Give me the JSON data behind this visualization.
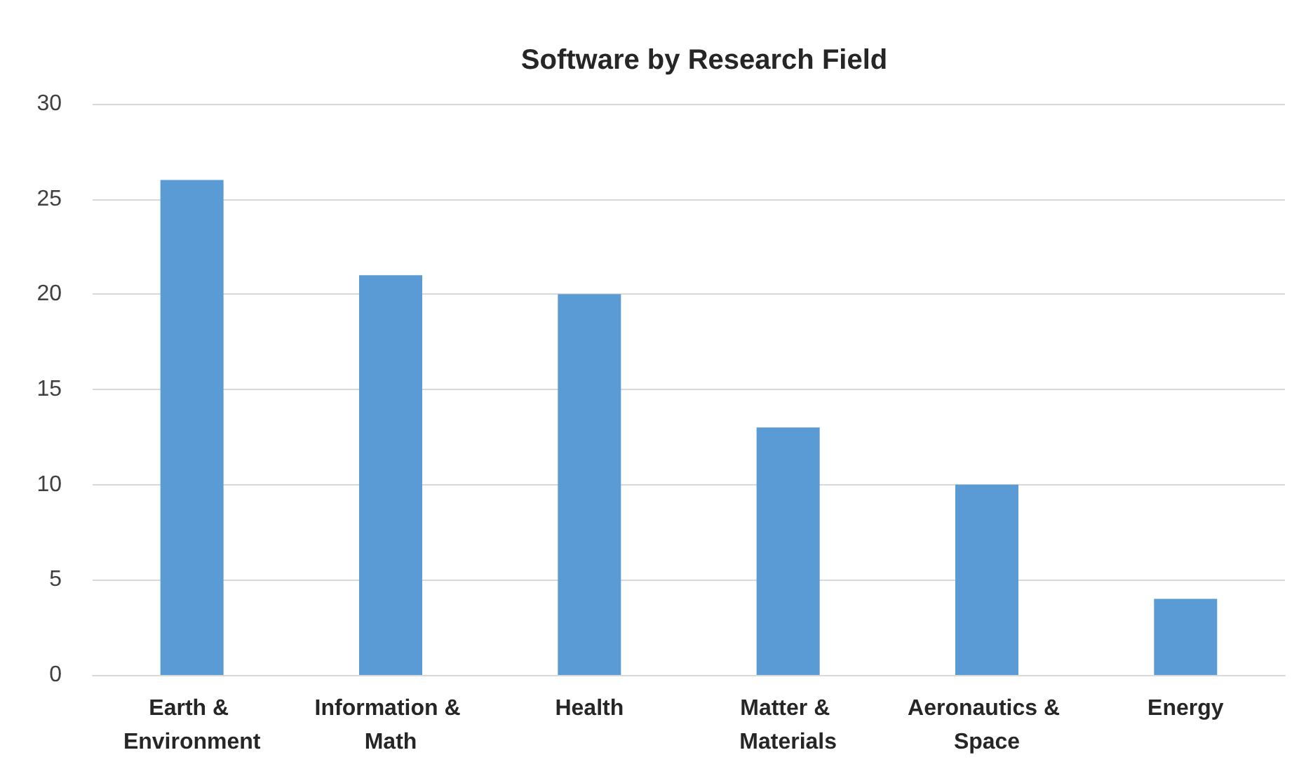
{
  "chart_data": {
    "type": "bar",
    "title": "Software by Research Field",
    "categories": [
      "Earth & Environment",
      "Information & Math",
      "Health",
      "Matter & Materials",
      "Aeronautics & Space",
      "Energy"
    ],
    "values": [
      26,
      21,
      20,
      13,
      10,
      4
    ],
    "color": "#5b9bd5",
    "ylim": [
      0,
      30
    ],
    "yticks": [
      0,
      5,
      10,
      15,
      20,
      25,
      30
    ],
    "grid": "y"
  }
}
